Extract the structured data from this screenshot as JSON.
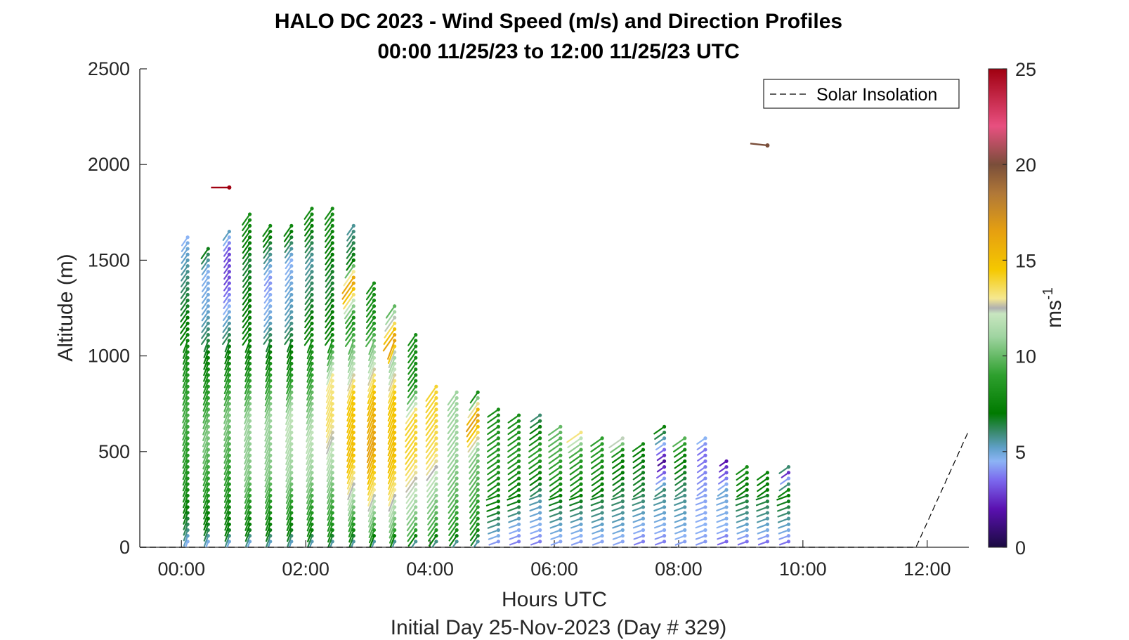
{
  "chart_data": {
    "type": "wind-barb-profile",
    "title_line1": "HALO DC 2023 - Wind Speed (m/s) and Direction Profiles",
    "title_line2": "00:00 11/25/23 to 12:00 11/25/23  UTC",
    "xlabel": "Hours UTC",
    "xlabel2": "Initial Day 25-Nov-2023 (Day # 329)",
    "ylabel": "Altitude (m)",
    "xlim_hours": [
      -0.67,
      12.67
    ],
    "ylim": [
      0,
      2500
    ],
    "x_ticks": [
      {
        "value": 0,
        "label": "00:00"
      },
      {
        "value": 2,
        "label": "02:00"
      },
      {
        "value": 4,
        "label": "04:00"
      },
      {
        "value": 6,
        "label": "06:00"
      },
      {
        "value": 8,
        "label": "08:00"
      },
      {
        "value": 10,
        "label": "10:00"
      },
      {
        "value": 12,
        "label": "12:00"
      }
    ],
    "y_ticks": [
      {
        "value": 0,
        "label": "0"
      },
      {
        "value": 500,
        "label": "500"
      },
      {
        "value": 1000,
        "label": "1000"
      },
      {
        "value": 1500,
        "label": "1500"
      },
      {
        "value": 2000,
        "label": "2000"
      },
      {
        "value": 2500,
        "label": "2500"
      }
    ],
    "legend": {
      "label": "Solar Insolation",
      "placement": "top-right"
    },
    "colorbar": {
      "label": "ms",
      "label_superscript": "-1",
      "range": [
        0,
        25
      ],
      "ticks": [
        {
          "value": 0,
          "label": "0"
        },
        {
          "value": 5,
          "label": "5"
        },
        {
          "value": 10,
          "label": "10"
        },
        {
          "value": 15,
          "label": "15"
        },
        {
          "value": 20,
          "label": "20"
        },
        {
          "value": 25,
          "label": "25"
        }
      ],
      "color_stops": [
        {
          "value": 0,
          "color": "#1a0a40"
        },
        {
          "value": 2,
          "color": "#5a10b0"
        },
        {
          "value": 3.5,
          "color": "#7b68ee"
        },
        {
          "value": 4.5,
          "color": "#8cb4f5"
        },
        {
          "value": 5.2,
          "color": "#5fa0c8"
        },
        {
          "value": 6,
          "color": "#3b8a70"
        },
        {
          "value": 7,
          "color": "#007a00"
        },
        {
          "value": 9,
          "color": "#2ea02e"
        },
        {
          "value": 11,
          "color": "#9fd4a0"
        },
        {
          "value": 12.2,
          "color": "#c8e6c0"
        },
        {
          "value": 12.5,
          "color": "#b0b0b0"
        },
        {
          "value": 13,
          "color": "#f5e890"
        },
        {
          "value": 14.5,
          "color": "#f5c800"
        },
        {
          "value": 16.5,
          "color": "#e6a010"
        },
        {
          "value": 18.5,
          "color": "#b07838"
        },
        {
          "value": 20,
          "color": "#7a4e3a"
        },
        {
          "value": 22,
          "color": "#e85080"
        },
        {
          "value": 25,
          "color": "#a00010"
        }
      ]
    },
    "solar_insolation": [
      {
        "x": -0.67,
        "y": 0
      },
      {
        "x": 11.82,
        "y": 0
      },
      {
        "x": 12.67,
        "y": 610
      }
    ],
    "profile_times": [
      0.1,
      0.43,
      0.77,
      1.1,
      1.43,
      1.77,
      2.1,
      2.43,
      2.77,
      3.1,
      3.43,
      3.77,
      4.1,
      4.43,
      4.77,
      5.1,
      5.43,
      5.77,
      6.1,
      6.43,
      6.77,
      7.1,
      7.43,
      7.77,
      8.1,
      8.43,
      8.77,
      9.1,
      9.43,
      9.77
    ],
    "profile_tops": [
      1620,
      1570,
      1660,
      1740,
      1700,
      1700,
      1780,
      1780,
      1700,
      1390,
      1280,
      1120,
      860,
      820,
      810,
      720,
      690,
      690,
      640,
      620,
      580,
      580,
      560,
      650,
      580,
      590,
      450,
      430,
      400,
      440
    ],
    "altitude_spacing_m": 30,
    "speed_profiles": [
      {
        "t": 0.1,
        "pts": [
          [
            0,
            4
          ],
          [
            100,
            6
          ],
          [
            300,
            8
          ],
          [
            700,
            9.5
          ],
          [
            1100,
            7.5
          ],
          [
            1400,
            6
          ],
          [
            1560,
            5
          ],
          [
            1620,
            4.5
          ]
        ]
      },
      {
        "t": 0.43,
        "pts": [
          [
            0,
            4
          ],
          [
            100,
            6.5
          ],
          [
            300,
            8.5
          ],
          [
            600,
            10.5
          ],
          [
            900,
            8
          ],
          [
            1250,
            5
          ],
          [
            1450,
            4.6
          ],
          [
            1570,
            7
          ]
        ]
      },
      {
        "t": 0.77,
        "pts": [
          [
            0,
            4
          ],
          [
            100,
            7
          ],
          [
            400,
            9
          ],
          [
            700,
            10.5
          ],
          [
            1000,
            7.5
          ],
          [
            1250,
            4.6
          ],
          [
            1400,
            3
          ],
          [
            1550,
            3
          ],
          [
            1660,
            5.5
          ]
        ]
      },
      {
        "t": 1.1,
        "pts": [
          [
            0,
            4
          ],
          [
            100,
            7
          ],
          [
            400,
            10.5
          ],
          [
            700,
            11
          ],
          [
            1000,
            7.5
          ],
          [
            1300,
            7
          ],
          [
            1500,
            6.5
          ],
          [
            1740,
            8
          ]
        ]
      },
      {
        "t": 1.43,
        "pts": [
          [
            0,
            4.5
          ],
          [
            100,
            7
          ],
          [
            400,
            10.5
          ],
          [
            700,
            11
          ],
          [
            1000,
            7.5
          ],
          [
            1200,
            5
          ],
          [
            1400,
            4
          ],
          [
            1700,
            8
          ]
        ]
      },
      {
        "t": 1.77,
        "pts": [
          [
            0,
            4.5
          ],
          [
            100,
            7
          ],
          [
            400,
            11
          ],
          [
            700,
            12
          ],
          [
            900,
            8.5
          ],
          [
            1200,
            5.5
          ],
          [
            1500,
            4.5
          ],
          [
            1700,
            8
          ]
        ]
      },
      {
        "t": 2.1,
        "pts": [
          [
            0,
            4.5
          ],
          [
            100,
            7.5
          ],
          [
            400,
            11
          ],
          [
            600,
            12
          ],
          [
            900,
            9
          ],
          [
            1200,
            7
          ],
          [
            1500,
            5.5
          ],
          [
            1780,
            8
          ]
        ]
      },
      {
        "t": 2.43,
        "pts": [
          [
            0,
            4.5
          ],
          [
            100,
            8
          ],
          [
            400,
            11
          ],
          [
            700,
            13.5
          ],
          [
            900,
            13
          ],
          [
            1100,
            7.5
          ],
          [
            1400,
            6.5
          ],
          [
            1780,
            8
          ]
        ]
      },
      {
        "t": 2.77,
        "pts": [
          [
            0,
            4.5
          ],
          [
            100,
            8
          ],
          [
            300,
            12
          ],
          [
            500,
            15
          ],
          [
            800,
            14.5
          ],
          [
            1000,
            11
          ],
          [
            1200,
            8
          ],
          [
            1400,
            17
          ],
          [
            1500,
            7
          ],
          [
            1700,
            5.5
          ]
        ]
      },
      {
        "t": 3.1,
        "pts": [
          [
            0,
            4
          ],
          [
            100,
            9
          ],
          [
            300,
            13
          ],
          [
            550,
            16.5
          ],
          [
            800,
            15
          ],
          [
            1000,
            11.5
          ],
          [
            1200,
            8
          ],
          [
            1390,
            8
          ]
        ]
      },
      {
        "t": 3.43,
        "pts": [
          [
            0,
            4
          ],
          [
            100,
            9.5
          ],
          [
            300,
            13
          ],
          [
            500,
            15
          ],
          [
            800,
            14.5
          ],
          [
            1000,
            11
          ],
          [
            1090,
            17
          ],
          [
            1280,
            9
          ]
        ]
      },
      {
        "t": 3.77,
        "pts": [
          [
            0,
            4
          ],
          [
            100,
            9.5
          ],
          [
            300,
            12
          ],
          [
            500,
            14
          ],
          [
            700,
            14
          ],
          [
            860,
            8
          ]
        ]
      },
      {
        "t": 4.1,
        "pts": [
          [
            0,
            4.5
          ],
          [
            100,
            9
          ],
          [
            300,
            11
          ],
          [
            500,
            13.5
          ],
          [
            700,
            14
          ],
          [
            820,
            14
          ]
        ]
      },
      {
        "t": 4.43,
        "pts": [
          [
            0,
            4.5
          ],
          [
            100,
            8.5
          ],
          [
            300,
            10
          ],
          [
            500,
            11
          ],
          [
            700,
            11
          ],
          [
            820,
            11
          ]
        ]
      },
      {
        "t": 4.77,
        "pts": [
          [
            0,
            4.5
          ],
          [
            100,
            8
          ],
          [
            300,
            9.5
          ],
          [
            500,
            10.5
          ],
          [
            700,
            17
          ],
          [
            810,
            8
          ]
        ]
      },
      {
        "t": 5.1,
        "pts": [
          [
            0,
            3.5
          ],
          [
            100,
            5.5
          ],
          [
            250,
            7.5
          ],
          [
            500,
            8.5
          ],
          [
            720,
            8
          ]
        ]
      },
      {
        "t": 5.43,
        "pts": [
          [
            0,
            3.5
          ],
          [
            100,
            4.5
          ],
          [
            250,
            7
          ],
          [
            500,
            8.5
          ],
          [
            690,
            8
          ]
        ]
      },
      {
        "t": 5.77,
        "pts": [
          [
            0,
            3.5
          ],
          [
            100,
            4.5
          ],
          [
            250,
            5.5
          ],
          [
            500,
            9
          ],
          [
            690,
            6
          ]
        ]
      },
      {
        "t": 6.1,
        "pts": [
          [
            0,
            4
          ],
          [
            100,
            5
          ],
          [
            300,
            7.5
          ],
          [
            500,
            9.5
          ],
          [
            640,
            10
          ]
        ]
      },
      {
        "t": 6.43,
        "pts": [
          [
            0,
            4
          ],
          [
            100,
            4.8
          ],
          [
            300,
            7.5
          ],
          [
            500,
            9
          ],
          [
            620,
            14
          ]
        ]
      },
      {
        "t": 6.77,
        "pts": [
          [
            0,
            4
          ],
          [
            100,
            5
          ],
          [
            300,
            7
          ],
          [
            500,
            8.5
          ],
          [
            580,
            9
          ]
        ]
      },
      {
        "t": 7.1,
        "pts": [
          [
            0,
            4
          ],
          [
            100,
            5
          ],
          [
            300,
            6.5
          ],
          [
            500,
            7.5
          ],
          [
            580,
            13
          ]
        ]
      },
      {
        "t": 7.43,
        "pts": [
          [
            0,
            3.5
          ],
          [
            100,
            4.5
          ],
          [
            300,
            6.5
          ],
          [
            500,
            7
          ],
          [
            560,
            8
          ]
        ]
      },
      {
        "t": 7.77,
        "pts": [
          [
            0,
            3.5
          ],
          [
            100,
            4.5
          ],
          [
            300,
            6
          ],
          [
            450,
            1.5
          ],
          [
            650,
            8
          ]
        ]
      },
      {
        "t": 8.1,
        "pts": [
          [
            0,
            4
          ],
          [
            100,
            4.8
          ],
          [
            300,
            6
          ],
          [
            500,
            7.5
          ],
          [
            580,
            10
          ]
        ]
      },
      {
        "t": 8.43,
        "pts": [
          [
            0,
            4
          ],
          [
            100,
            4.5
          ],
          [
            300,
            4.2
          ],
          [
            500,
            3.5
          ],
          [
            590,
            4.8
          ]
        ]
      },
      {
        "t": 8.77,
        "pts": [
          [
            0,
            3
          ],
          [
            100,
            4.5
          ],
          [
            300,
            5
          ],
          [
            450,
            2
          ]
        ]
      },
      {
        "t": 9.1,
        "pts": [
          [
            0,
            3
          ],
          [
            100,
            5
          ],
          [
            300,
            7
          ],
          [
            430,
            8
          ]
        ]
      },
      {
        "t": 9.43,
        "pts": [
          [
            0,
            3
          ],
          [
            100,
            5
          ],
          [
            300,
            7
          ],
          [
            400,
            7.5
          ]
        ]
      },
      {
        "t": 9.77,
        "pts": [
          [
            0,
            3
          ],
          [
            100,
            5
          ],
          [
            300,
            7.5
          ],
          [
            400,
            2
          ],
          [
            440,
            10
          ]
        ]
      }
    ],
    "isolated_points": [
      {
        "x": 0.77,
        "y": 1880,
        "speed": 25,
        "dir_deg": 180
      },
      {
        "x": 9.43,
        "y": 2100,
        "speed": 20,
        "dir_deg": 160
      }
    ]
  }
}
